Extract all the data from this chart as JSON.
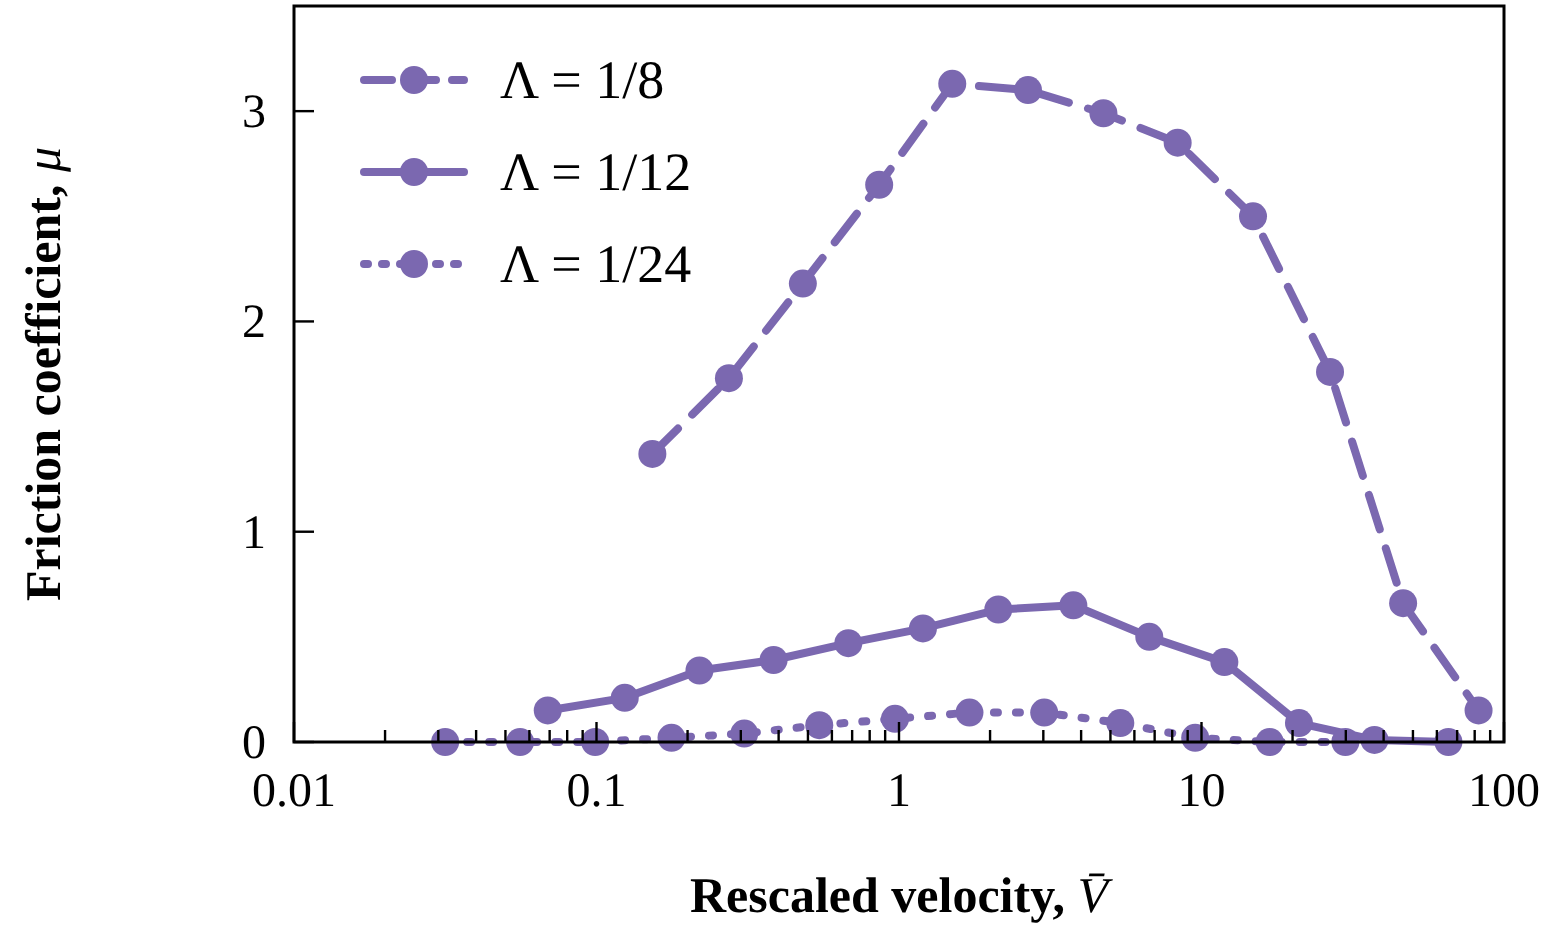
{
  "chart_data": {
    "type": "line",
    "xlabel": "Rescaled velocity, V̄",
    "ylabel": "Friction coefficient, μ",
    "log": "x",
    "xlim": [
      0.01,
      100
    ],
    "ylim": [
      0,
      3.5
    ],
    "xticks": [
      0.01,
      {
        "value": 0.02,
        "label": null
      },
      {
        "value": 0.03,
        "label": null
      },
      {
        "value": 0.04,
        "label": null
      },
      {
        "value": 0.05,
        "label": null
      },
      {
        "value": 0.06,
        "label": null
      },
      {
        "value": 0.07,
        "label": null
      },
      {
        "value": 0.08,
        "label": null
      },
      {
        "value": 0.09,
        "label": null
      },
      0.1,
      {
        "value": 0.2,
        "label": null
      },
      {
        "value": 0.3,
        "label": null
      },
      {
        "value": 0.4,
        "label": null
      },
      {
        "value": 0.5,
        "label": null
      },
      {
        "value": 0.6,
        "label": null
      },
      {
        "value": 0.7,
        "label": null
      },
      {
        "value": 0.8,
        "label": null
      },
      {
        "value": 0.9,
        "label": null
      },
      1,
      {
        "value": 2,
        "label": null
      },
      {
        "value": 3,
        "label": null
      },
      {
        "value": 4,
        "label": null
      },
      {
        "value": 5,
        "label": null
      },
      {
        "value": 6,
        "label": null
      },
      {
        "value": 7,
        "label": null
      },
      {
        "value": 8,
        "label": null
      },
      {
        "value": 9,
        "label": null
      },
      10,
      {
        "value": 20,
        "label": null
      },
      {
        "value": 30,
        "label": null
      },
      {
        "value": 40,
        "label": null
      },
      {
        "value": 50,
        "label": null
      },
      {
        "value": 60,
        "label": null
      },
      {
        "value": 70,
        "label": null
      },
      {
        "value": 80,
        "label": null
      },
      {
        "value": 90,
        "label": null
      },
      100
    ],
    "yticks": [
      0,
      1,
      2,
      3
    ],
    "grid": false,
    "legend": "top left",
    "marker": "circle",
    "series": [
      {
        "name": "Λ = 1/8",
        "color": "#7b68b0",
        "line_style": "dashed",
        "x": [
          0.153,
          0.274,
          0.481,
          0.86,
          1.5,
          2.67,
          4.74,
          8.34,
          14.8,
          26.6,
          46.4,
          82.4
        ],
        "values": [
          1.37,
          1.73,
          2.18,
          2.65,
          3.13,
          3.1,
          2.99,
          2.85,
          2.5,
          1.76,
          0.66,
          0.15
        ]
      },
      {
        "name": "Λ = 1/12",
        "color": "#7b68b0",
        "line_style": "solid",
        "x": [
          0.069,
          0.124,
          0.219,
          0.385,
          0.68,
          1.2,
          2.13,
          3.77,
          6.72,
          11.9,
          21,
          37.3,
          65.5
        ],
        "values": [
          0.15,
          0.21,
          0.34,
          0.39,
          0.47,
          0.54,
          0.63,
          0.65,
          0.5,
          0.38,
          0.09,
          0.01,
          0
        ]
      },
      {
        "name": "Λ = 1/24",
        "color": "#7b68b0",
        "line_style": "dotted",
        "x": [
          0.0316,
          0.0559,
          0.099,
          0.177,
          0.308,
          0.545,
          0.97,
          1.71,
          3.02,
          5.39,
          9.53,
          16.8,
          29.9
        ],
        "values": [
          0,
          0,
          0,
          0.02,
          0.04,
          0.08,
          0.11,
          0.14,
          0.14,
          0.09,
          0.02,
          0,
          0
        ]
      }
    ]
  }
}
